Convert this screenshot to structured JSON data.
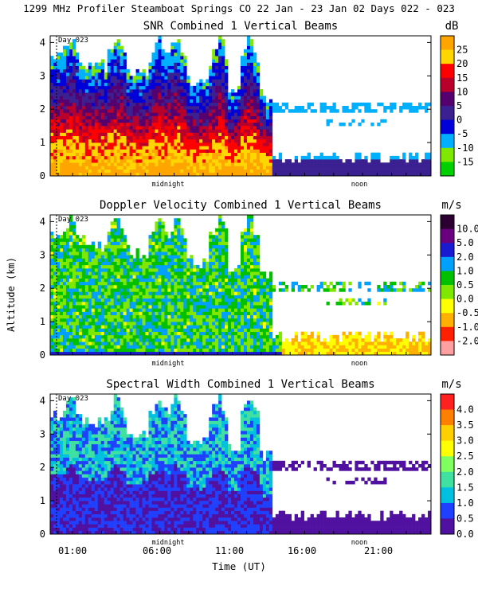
{
  "figure": {
    "title": "1299 MHz Profiler  Steamboat Springs CO  22 Jan - 23 Jan 02 Days 022 - 023",
    "ylabel": "Altitude (km)",
    "xlabel": "Time (UT)",
    "day_marker": "Day 023",
    "midnight_label": "midnight",
    "noon_label": "noon"
  },
  "chart_data": [
    {
      "type": "heatmap",
      "title": "SNR Combined 1 Vertical Beams",
      "unit": "dB",
      "ylim": [
        0,
        4.2
      ],
      "yticks": [
        0,
        1,
        2,
        3,
        4
      ],
      "colorbar": {
        "labels": [
          "25",
          "20",
          "15",
          "10",
          "5",
          "0",
          "-5",
          "-10",
          "-15"
        ],
        "colors": [
          "#ffa500",
          "#ffd700",
          "#ff0000",
          "#b8002a",
          "#55006e",
          "#3a2090",
          "#0000d8",
          "#00b0ff",
          "#80e800",
          "#00d000"
        ]
      },
      "panel": "snr"
    },
    {
      "type": "heatmap",
      "title": "Doppler Velocity Combined 1 Vertical Beams",
      "unit": "m/s",
      "ylim": [
        0,
        4.2
      ],
      "yticks": [
        0,
        1,
        2,
        3,
        4
      ],
      "colorbar": {
        "labels": [
          "10.0",
          "5.0",
          "2.0",
          "1.0",
          "0.5",
          "0.0",
          "-0.5",
          "-1.0",
          "-2.0"
        ],
        "colors": [
          "#2b0030",
          "#6a0080",
          "#1a1ad0",
          "#00a0ff",
          "#00c000",
          "#80e800",
          "#ffff00",
          "#ffb000",
          "#ff2000",
          "#ffa0a0"
        ]
      },
      "panel": "doppler"
    },
    {
      "type": "heatmap",
      "title": "Spectral Width Combined 1 Vertical Beams",
      "unit": "m/s",
      "ylim": [
        0,
        4.2
      ],
      "yticks": [
        0,
        1,
        2,
        3,
        4
      ],
      "colorbar": {
        "labels": [
          "4.0",
          "3.5",
          "3.0",
          "2.5",
          "2.0",
          "1.5",
          "1.0",
          "0.5",
          "0.0"
        ],
        "colors": [
          "#ff2020",
          "#ff8000",
          "#ffd000",
          "#ffff00",
          "#80ff60",
          "#40e0a0",
          "#00c0e0",
          "#2040ff",
          "#5010a0"
        ]
      },
      "panel": "width"
    }
  ],
  "xaxis": {
    "tick_labels": [
      "01:00",
      "06:00",
      "11:00",
      "16:00",
      "21:00"
    ]
  }
}
